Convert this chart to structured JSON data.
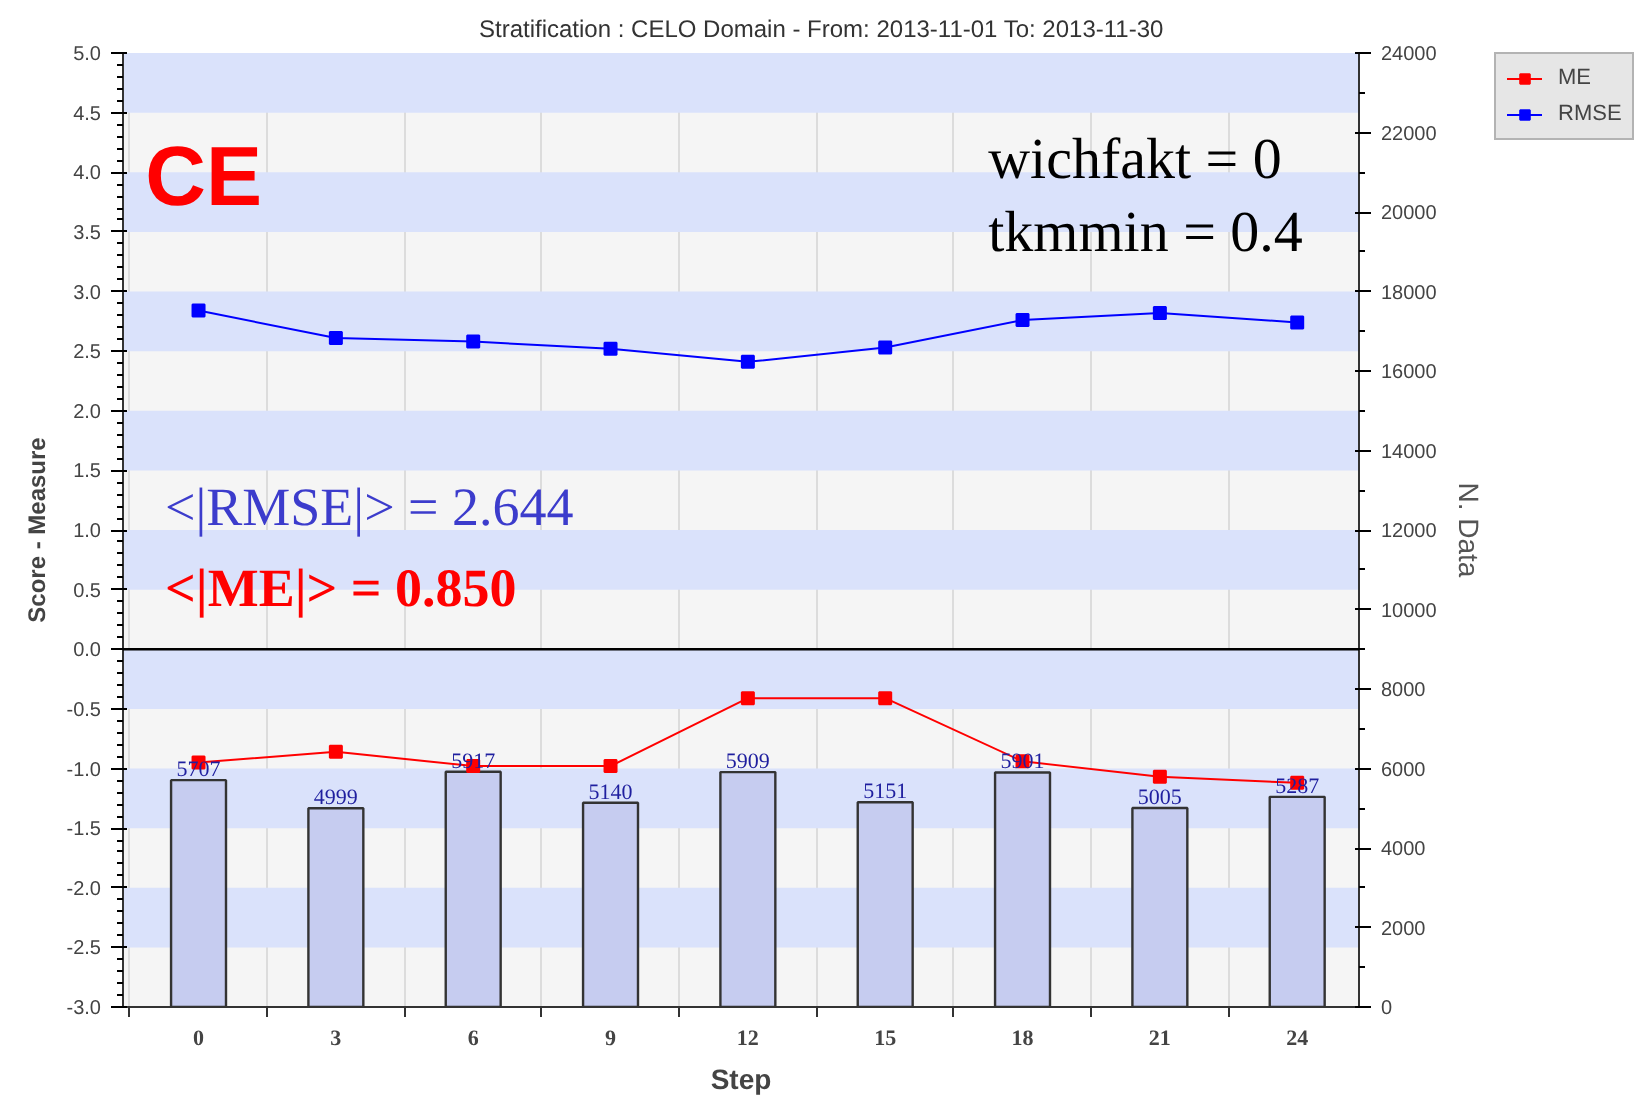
{
  "chart_data": {
    "type": "line",
    "title": "Stratification : CELO Domain - From: 2013-11-01 To: 2013-11-30",
    "xlabel": "Step",
    "ylabel": "Score - Measure",
    "y2label": "N. Data",
    "categories": [
      "0",
      "3",
      "6",
      "9",
      "12",
      "15",
      "18",
      "21",
      "24"
    ],
    "series": [
      {
        "name": "ME",
        "color": "#ff0000",
        "values": [
          -0.95,
          -0.86,
          -0.98,
          -0.98,
          -0.41,
          -0.41,
          -0.94,
          -1.07,
          -1.12
        ]
      },
      {
        "name": "RMSE",
        "color": "#0000ff",
        "values": [
          2.84,
          2.61,
          2.58,
          2.52,
          2.41,
          2.53,
          2.76,
          2.82,
          2.74
        ]
      },
      {
        "type": "bar",
        "axis": "y2",
        "color": "#c6ccf0",
        "values": [
          5707,
          4999,
          5917,
          5140,
          5909,
          5151,
          5901,
          5005,
          5287
        ],
        "value_labels": [
          "5707",
          "4999",
          "5917",
          "5140",
          "5909",
          "5151",
          "5901",
          "5005",
          "5287"
        ]
      }
    ],
    "ylim": [
      -3,
      5
    ],
    "yticks": [
      {
        "value": -3,
        "label": "-3.0"
      },
      -2.5,
      {
        "value": -2,
        "label": "-2.0"
      },
      -1.5,
      {
        "value": -1,
        "label": "-1.0"
      },
      -0.5,
      {
        "value": 0,
        "label": "0.0"
      },
      0.5,
      {
        "value": 1,
        "label": "1.0"
      },
      1.5,
      {
        "value": 2,
        "label": "2.0"
      },
      2.5,
      {
        "value": 3,
        "label": "3.0"
      },
      3.5,
      {
        "value": 4,
        "label": "4.0"
      },
      4.5,
      {
        "value": 5,
        "label": "5.0"
      }
    ],
    "y2lim": [
      0,
      24000
    ],
    "y2ticks": [
      0,
      2000,
      4000,
      6000,
      8000,
      10000,
      12000,
      14000,
      16000,
      18000,
      20000,
      22000,
      24000
    ],
    "ref_lines": [
      {
        "axis": "y",
        "value": 0,
        "color": "#000000"
      }
    ],
    "annotations": [
      "CE",
      "wichfakt = 0",
      "tkmmin = 0.4",
      "<|RMSE|> = 2.644",
      "<|ME|> = 0.850"
    ],
    "grid": true,
    "legend": "top right",
    "marker": "square",
    "line_style": "solid"
  }
}
